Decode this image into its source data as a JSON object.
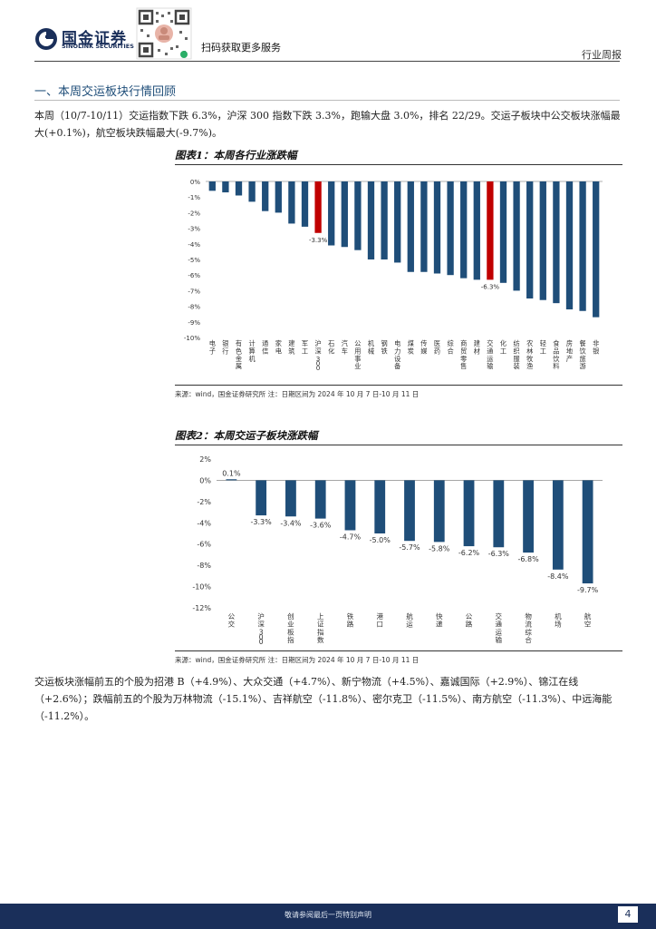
{
  "header": {
    "logo_cn": "国金证券",
    "logo_en": "SINOLINK SECURITIES",
    "scan_text": "扫码获取更多服务",
    "report_type": "行业周报"
  },
  "section": {
    "title": "一、本周交运板块行情回顾",
    "intro": "本周（10/7-10/11）交运指数下跌 6.3%，沪深 300 指数下跌 3.3%，跑输大盘 3.0%，排名 22/29。交运子板块中公交板块涨幅最大(+0.1%)，航空板块跌幅最大(-9.7%)。",
    "stocks": "交运板块涨幅前五的个股为招港 B（+4.9%）、大众交通（+4.7%）、新宁物流（+4.5%）、嘉诚国际（+2.9%）、锦江在线（+2.6%）；跌幅前五的个股为万林物流（-15.1%）、吉祥航空（-11.8%）、密尔克卫（-11.5%）、南方航空（-11.3%）、中远海能（-11.2%）。"
  },
  "figure1": {
    "title": "图表1：本周各行业涨跌幅",
    "source": "来源：wind，国金证券研究所   注：日期区间为 2024 年 10 月 7 日-10 月 11 日"
  },
  "figure2": {
    "title": "图表2：本周交运子板块涨跌幅",
    "source": "来源：wind，国金证券研究所   注：日期区间为 2024 年 10 月 7 日-10 月 11 日"
  },
  "chart_data": [
    {
      "type": "bar",
      "categories": [
        "电子",
        "银行",
        "有色金属",
        "计算机",
        "通信",
        "家电",
        "建筑",
        "军工",
        "沪深300",
        "石化",
        "汽车",
        "公用事业",
        "机械",
        "钢铁",
        "电力设备",
        "煤炭",
        "传媒",
        "医药",
        "综合",
        "商贸零售",
        "建材",
        "交通运输",
        "化工",
        "纺织服装",
        "农林牧渔",
        "轻工",
        "食品饮料",
        "房地产",
        "餐饮旅游",
        "非银"
      ],
      "values": [
        -0.6,
        -0.7,
        -0.9,
        -1.3,
        -1.9,
        -2.0,
        -2.7,
        -2.9,
        -3.3,
        -4.1,
        -4.2,
        -4.4,
        -5.0,
        -5.0,
        -5.2,
        -5.8,
        -5.8,
        -5.9,
        -6.0,
        -6.2,
        -6.3,
        -6.3,
        -6.5,
        -7.0,
        -7.5,
        -7.6,
        -7.8,
        -8.2,
        -8.3,
        -8.7
      ],
      "highlight": [
        "沪深300",
        "交通运输"
      ],
      "data_labels": {
        "沪深300": "-3.3%",
        "交通运输": "-6.3%"
      },
      "yticks": [
        "0%",
        "-1%",
        "-2%",
        "-3%",
        "-4%",
        "-5%",
        "-6%",
        "-7%",
        "-8%",
        "-9%",
        "-10%"
      ],
      "ylim": [
        -10,
        0
      ],
      "colors": {
        "bar": "#1f4e79",
        "highlight": "#c00000"
      }
    },
    {
      "type": "bar",
      "categories": [
        "公交",
        "沪深300",
        "创业板指",
        "上证指数",
        "铁路",
        "港口",
        "航运",
        "快递",
        "公路",
        "交通运输",
        "物流综合",
        "机场",
        "航空"
      ],
      "values": [
        0.1,
        -3.3,
        -3.4,
        -3.6,
        -4.7,
        -5.0,
        -5.7,
        -5.8,
        -6.2,
        -6.3,
        -6.8,
        -8.4,
        -9.7
      ],
      "data_labels": [
        "0.1%",
        "-3.3%",
        "-3.4%",
        "-3.6%",
        "-4.7%",
        "-5.0%",
        "-5.7%",
        "-5.8%",
        "-6.2%",
        "-6.3%",
        "-6.8%",
        "-8.4%",
        "-9.7%"
      ],
      "yticks": [
        "2%",
        "0%",
        "-2%",
        "-4%",
        "-6%",
        "-8%",
        "-10%",
        "-12%"
      ],
      "ylim": [
        -12,
        2
      ],
      "colors": {
        "bar": "#1f4e79"
      }
    }
  ],
  "footer": {
    "disclaimer": "敬请参阅最后一页特别声明",
    "page": "4"
  }
}
